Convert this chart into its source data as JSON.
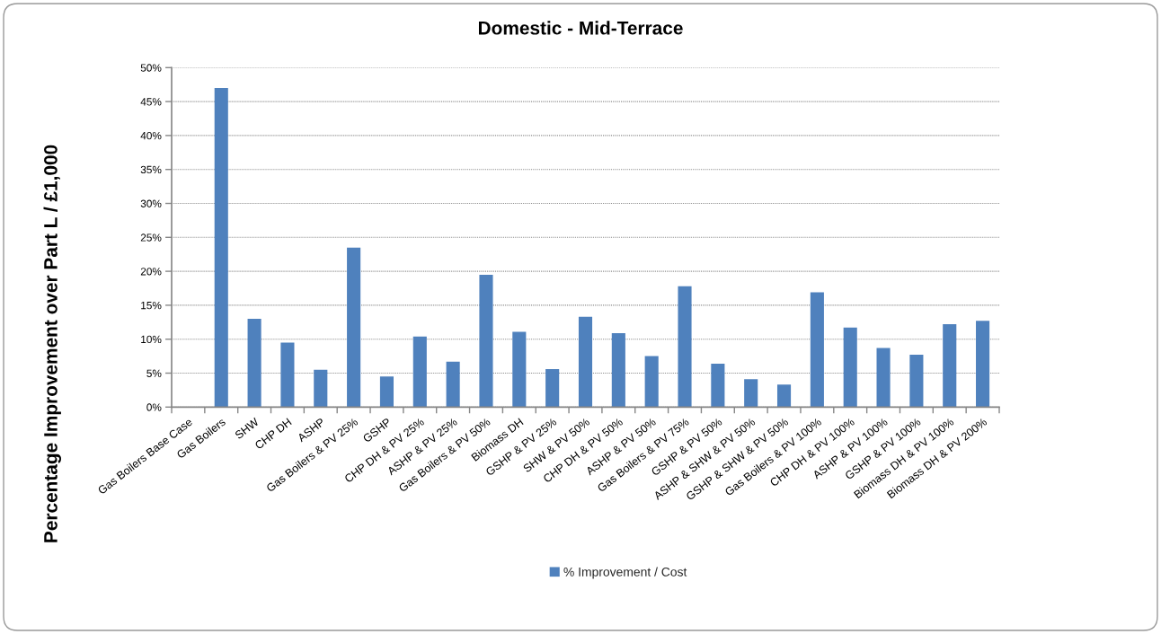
{
  "chart_data": {
    "type": "bar",
    "title": "Domestic - Mid-Terrace",
    "ylabel": "Percentage Improvement over Part L / £1,000",
    "categories": [
      "Gas Boilers Base Case",
      "Gas Boilers",
      "SHW",
      "CHP DH",
      "ASHP",
      "Gas Boilers & PV 25%",
      "GSHP",
      "CHP DH & PV 25%",
      "ASHP & PV 25%",
      "Gas Boilers & PV 50%",
      "Biomass DH",
      "GSHP & PV 25%",
      "SHW & PV 50%",
      "CHP DH & PV 50%",
      "ASHP & PV 50%",
      "Gas Boilers & PV 75%",
      "GSHP & PV 50%",
      "ASHP & SHW & PV 50%",
      "GSHP & SHW & PV 50%",
      "Gas Boilers & PV 100%",
      "CHP DH & PV 100%",
      "ASHP & PV 100%",
      "GSHP & PV 100%",
      "Biomass DH & PV 100%",
      "Biomass DH & PV 200%"
    ],
    "series": [
      {
        "name": "% Improvement / Cost",
        "color": "#4f81bd",
        "values": [
          0,
          47.0,
          13.0,
          9.5,
          5.5,
          23.5,
          4.5,
          10.4,
          6.7,
          19.5,
          11.1,
          5.6,
          13.3,
          10.9,
          7.5,
          17.8,
          6.4,
          4.1,
          3.3,
          16.9,
          11.7,
          8.7,
          7.7,
          12.2,
          12.7
        ]
      }
    ],
    "ylim": [
      0,
      50
    ],
    "yticks": [
      {
        "value": 0,
        "label": "0%"
      },
      {
        "value": 5,
        "label": "5%"
      },
      {
        "value": 10,
        "label": "10%"
      },
      {
        "value": 15,
        "label": "15%"
      },
      {
        "value": 20,
        "label": "20%"
      },
      {
        "value": 25,
        "label": "25%"
      },
      {
        "value": 30,
        "label": "30%"
      },
      {
        "value": 35,
        "label": "35%"
      },
      {
        "value": 40,
        "label": "40%"
      },
      {
        "value": 45,
        "label": "45%"
      },
      {
        "value": 50,
        "label": "50%"
      }
    ],
    "grid": "y",
    "legend": "bottom"
  }
}
